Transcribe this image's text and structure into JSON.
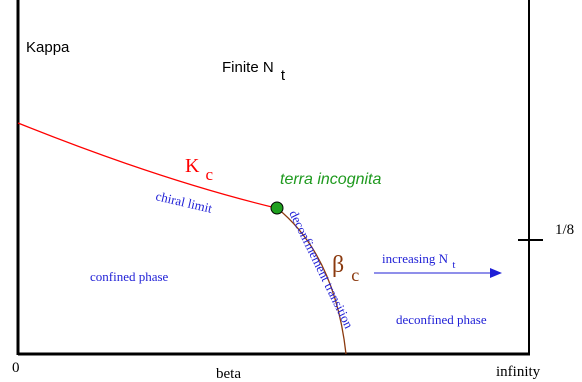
{
  "y_axis_label": "Kappa",
  "x_axis_label": "beta",
  "x_origin_label": "0",
  "x_end_label": "infinity",
  "y_tick_label": "1/8",
  "title": {
    "main": "Finite N",
    "sub": "t"
  },
  "kappa_c": {
    "symbol": "K",
    "sub": "c",
    "label": "chiral limit"
  },
  "beta_c": {
    "symbol": "β",
    "sub": "c",
    "label": "deconfinement transition"
  },
  "terra": "terra incognita",
  "arrow_label": {
    "main": "increasing N",
    "sub": "t"
  },
  "regions": {
    "confined": "confined phase",
    "deconfined": "deconfined phase"
  },
  "colors": {
    "axis": "#000000",
    "kappa_curve": "#ff0000",
    "beta_curve": "#8b3a0f",
    "point": "#1fa01f",
    "text_blue": "#1f1fd6",
    "terra": "#1f9a1f"
  }
}
